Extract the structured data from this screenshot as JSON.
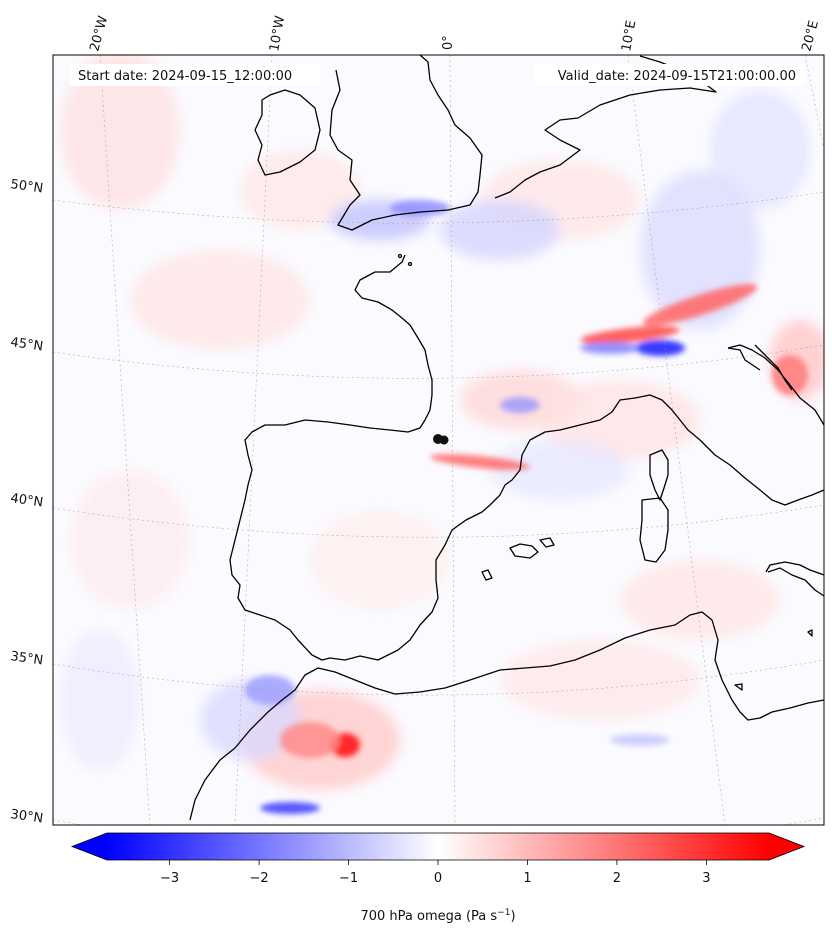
{
  "header": {
    "start_date": "Start date: 2024-09-15_12:00:00",
    "valid_date": "Valid_date: 2024-09-15T21:00:00.00"
  },
  "map": {
    "longitude_labels": [
      "20°W",
      "10°W",
      "0°",
      "10°E",
      "20°E"
    ],
    "latitude_labels": [
      "50°N",
      "45°N",
      "40°N",
      "35°N",
      "30°N"
    ],
    "field": "700 hPa omega"
  },
  "colorbar": {
    "ticks": [
      "−3",
      "−2",
      "−1",
      "0",
      "1",
      "2",
      "3"
    ],
    "label_main": "700 hPa omega (Pa s",
    "label_sup": "−1",
    "label_end": ")",
    "min": -3.7,
    "max": 3.7,
    "colors": {
      "negative": "#0000ff",
      "zero": "#ffffff",
      "positive": "#ff0000"
    }
  }
}
